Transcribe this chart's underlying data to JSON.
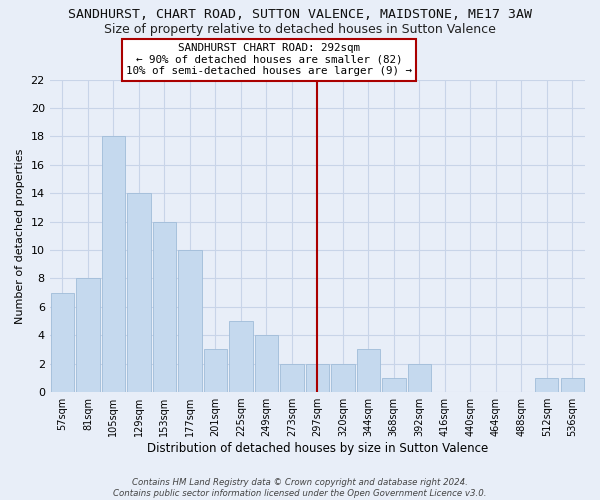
{
  "title": "SANDHURST, CHART ROAD, SUTTON VALENCE, MAIDSTONE, ME17 3AW",
  "subtitle": "Size of property relative to detached houses in Sutton Valence",
  "xlabel": "Distribution of detached houses by size in Sutton Valence",
  "ylabel": "Number of detached properties",
  "bar_color": "#c5d9ee",
  "bar_edge_color": "#a0bcd8",
  "categories": [
    "57sqm",
    "81sqm",
    "105sqm",
    "129sqm",
    "153sqm",
    "177sqm",
    "201sqm",
    "225sqm",
    "249sqm",
    "273sqm",
    "297sqm",
    "320sqm",
    "344sqm",
    "368sqm",
    "392sqm",
    "416sqm",
    "440sqm",
    "464sqm",
    "488sqm",
    "512sqm",
    "536sqm"
  ],
  "values": [
    7,
    8,
    18,
    14,
    12,
    10,
    3,
    5,
    4,
    2,
    2,
    2,
    3,
    1,
    2,
    0,
    0,
    0,
    0,
    1,
    1
  ],
  "ylim": [
    0,
    22
  ],
  "yticks": [
    0,
    2,
    4,
    6,
    8,
    10,
    12,
    14,
    16,
    18,
    20,
    22
  ],
  "vline_x_index": 10,
  "vline_color": "#aa0000",
  "annotation_title": "SANDHURST CHART ROAD: 292sqm",
  "annotation_line1": "← 90% of detached houses are smaller (82)",
  "annotation_line2": "10% of semi-detached houses are larger (9) →",
  "annotation_box_color": "#ffffff",
  "annotation_box_edge": "#aa0000",
  "footer1": "Contains HM Land Registry data © Crown copyright and database right 2024.",
  "footer2": "Contains public sector information licensed under the Open Government Licence v3.0.",
  "background_color": "#e8eef8",
  "grid_color": "#c8d4e8",
  "title_fontsize": 9.5,
  "subtitle_fontsize": 9
}
